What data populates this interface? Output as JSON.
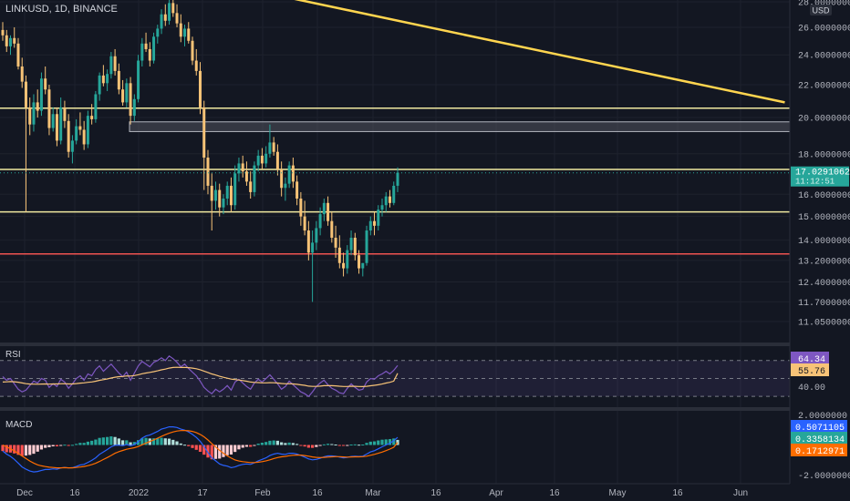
{
  "header": {
    "symbol_label": "LINKUSD, 1D, BINANCE",
    "currency": "USD"
  },
  "price_axis": {
    "labels": [
      "28.0000000",
      "26.0000000",
      "24.0000000",
      "22.0000000",
      "20.0000000",
      "18.0000000",
      "16.0000000",
      "15.0000000",
      "14.0000000",
      "13.2000000",
      "12.4000000",
      "11.7000000",
      "11.0500000"
    ],
    "values": [
      28.0,
      26.0,
      24.0,
      22.0,
      20.0,
      18.0,
      16.0,
      15.0,
      14.0,
      13.2,
      12.4,
      11.7,
      11.05
    ],
    "current_price": "17.0291062",
    "current_price_value": 17.0291,
    "countdown": "11:12:51"
  },
  "time_axis": {
    "labels": [
      "Dec",
      "16",
      "2022",
      "17",
      "Feb",
      "16",
      "Mar",
      "16",
      "Apr",
      "16",
      "May",
      "16",
      "Jun"
    ]
  },
  "drawings": {
    "horizontal_levels": [
      {
        "value": 20.55,
        "color": "#f0e9a0"
      },
      {
        "value": 17.2,
        "color": "#f0e9a0"
      },
      {
        "value": 15.2,
        "color": "#f0e9a0"
      },
      {
        "value": 13.45,
        "color": "#ef5350"
      }
    ],
    "zone": {
      "from": 19.2,
      "to": 19.75,
      "color": "#5d606b"
    },
    "trendline": {
      "color": "#ffd54f",
      "from": {
        "bar": 70,
        "price": 28.6
      },
      "to": {
        "bar": 202,
        "price": 20.9
      }
    }
  },
  "chart_data": [
    {
      "type": "candlestick",
      "title": "LINKUSD, 1D, BINANCE",
      "ylim": [
        11.05,
        28.0
      ],
      "scale": "log",
      "up_color": "#26a69a",
      "down_color": "#f7c377",
      "ohlc": [
        [
          25.8,
          26.4,
          25.0,
          25.4
        ],
        [
          25.4,
          25.8,
          24.2,
          24.6
        ],
        [
          24.6,
          25.4,
          24.0,
          25.2
        ],
        [
          25.2,
          26.0,
          24.5,
          24.8
        ],
        [
          24.8,
          25.2,
          23.0,
          23.2
        ],
        [
          23.2,
          23.8,
          21.8,
          22.2
        ],
        [
          22.2,
          22.6,
          15.2,
          20.6
        ],
        [
          20.6,
          21.2,
          19.0,
          19.6
        ],
        [
          19.6,
          21.4,
          19.2,
          20.9
        ],
        [
          20.9,
          21.7,
          20.0,
          20.4
        ],
        [
          20.4,
          22.8,
          20.1,
          22.4
        ],
        [
          22.4,
          23.2,
          21.4,
          21.7
        ],
        [
          21.7,
          22.0,
          19.0,
          19.4
        ],
        [
          19.4,
          20.6,
          19.2,
          20.2
        ],
        [
          20.2,
          20.6,
          18.4,
          18.7
        ],
        [
          18.7,
          21.2,
          18.5,
          20.6
        ],
        [
          20.6,
          21.0,
          19.4,
          19.8
        ],
        [
          19.8,
          20.2,
          17.8,
          18.1
        ],
        [
          18.1,
          19.0,
          17.5,
          18.7
        ],
        [
          18.7,
          19.9,
          18.5,
          19.5
        ],
        [
          19.5,
          20.3,
          19.0,
          19.3
        ],
        [
          19.3,
          19.8,
          18.2,
          18.5
        ],
        [
          18.5,
          20.4,
          18.3,
          20.1
        ],
        [
          20.1,
          20.8,
          19.6,
          19.9
        ],
        [
          19.9,
          21.6,
          19.7,
          21.4
        ],
        [
          21.4,
          22.8,
          21.0,
          22.6
        ],
        [
          22.6,
          23.3,
          21.9,
          22.1
        ],
        [
          22.1,
          23.0,
          21.6,
          22.7
        ],
        [
          22.7,
          24.2,
          22.4,
          23.9
        ],
        [
          23.9,
          24.4,
          22.6,
          22.9
        ],
        [
          22.9,
          23.4,
          21.4,
          21.7
        ],
        [
          21.7,
          22.3,
          20.7,
          20.9
        ],
        [
          20.9,
          22.4,
          20.6,
          22.1
        ],
        [
          22.1,
          22.5,
          19.6,
          20.1
        ],
        [
          20.1,
          21.4,
          19.8,
          21.1
        ],
        [
          21.1,
          24.0,
          20.9,
          23.6
        ],
        [
          23.6,
          25.2,
          23.2,
          24.8
        ],
        [
          24.8,
          25.6,
          24.2,
          24.4
        ],
        [
          24.4,
          24.9,
          23.2,
          23.6
        ],
        [
          23.6,
          25.6,
          23.4,
          25.3
        ],
        [
          25.3,
          26.2,
          24.8,
          25.9
        ],
        [
          25.9,
          27.4,
          25.5,
          27.0
        ],
        [
          27.0,
          27.8,
          26.1,
          26.5
        ],
        [
          26.5,
          28.3,
          26.2,
          27.9
        ],
        [
          27.9,
          28.5,
          26.8,
          27.1
        ],
        [
          27.1,
          27.8,
          26.0,
          26.3
        ],
        [
          26.3,
          27.0,
          24.9,
          25.3
        ],
        [
          25.3,
          26.2,
          24.6,
          25.9
        ],
        [
          25.9,
          26.4,
          24.8,
          25.0
        ],
        [
          25.0,
          25.3,
          23.3,
          23.6
        ],
        [
          23.6,
          24.4,
          22.6,
          22.9
        ],
        [
          22.9,
          23.5,
          20.2,
          20.6
        ],
        [
          20.6,
          21.0,
          16.2,
          17.8
        ],
        [
          17.8,
          18.2,
          16.0,
          16.4
        ],
        [
          16.4,
          17.0,
          14.4,
          15.7
        ],
        [
          15.7,
          16.6,
          15.3,
          16.2
        ],
        [
          16.2,
          16.5,
          15.0,
          15.4
        ],
        [
          15.4,
          16.0,
          15.1,
          15.8
        ],
        [
          15.8,
          16.6,
          15.5,
          16.4
        ],
        [
          16.4,
          16.8,
          15.2,
          15.5
        ],
        [
          15.5,
          17.4,
          15.3,
          17.0
        ],
        [
          17.0,
          17.8,
          16.6,
          17.5
        ],
        [
          17.5,
          17.9,
          16.8,
          17.1
        ],
        [
          17.1,
          17.6,
          16.4,
          16.6
        ],
        [
          16.6,
          17.1,
          15.8,
          16.1
        ],
        [
          16.1,
          17.6,
          15.9,
          17.4
        ],
        [
          17.4,
          18.2,
          17.1,
          17.9
        ],
        [
          17.9,
          18.3,
          17.2,
          17.5
        ],
        [
          17.5,
          18.4,
          17.3,
          18.0
        ],
        [
          18.0,
          19.6,
          17.8,
          18.6
        ],
        [
          18.6,
          18.9,
          17.9,
          18.1
        ],
        [
          18.1,
          18.5,
          16.9,
          17.2
        ],
        [
          17.2,
          17.6,
          15.9,
          16.3
        ],
        [
          16.3,
          16.8,
          15.7,
          16.5
        ],
        [
          16.5,
          17.6,
          16.3,
          17.4
        ],
        [
          17.4,
          17.8,
          16.3,
          16.6
        ],
        [
          16.6,
          16.9,
          15.5,
          15.8
        ],
        [
          15.8,
          16.1,
          14.6,
          15.0
        ],
        [
          15.0,
          15.7,
          14.2,
          14.4
        ],
        [
          14.4,
          14.8,
          13.2,
          13.5
        ],
        [
          13.5,
          14.4,
          11.7,
          13.9
        ],
        [
          13.9,
          14.8,
          13.6,
          14.5
        ],
        [
          14.5,
          15.4,
          14.2,
          15.1
        ],
        [
          15.1,
          15.8,
          14.8,
          15.6
        ],
        [
          15.6,
          15.9,
          14.6,
          14.8
        ],
        [
          14.8,
          15.2,
          13.9,
          14.1
        ],
        [
          14.1,
          14.6,
          13.3,
          13.7
        ],
        [
          13.7,
          14.2,
          12.9,
          13.1
        ],
        [
          13.1,
          13.5,
          12.6,
          12.9
        ],
        [
          12.9,
          13.8,
          12.7,
          13.6
        ],
        [
          13.6,
          14.4,
          13.4,
          14.1
        ],
        [
          14.1,
          14.3,
          13.2,
          13.4
        ],
        [
          13.4,
          13.6,
          12.7,
          12.9
        ],
        [
          12.9,
          13.1,
          12.6,
          13.1
        ],
        [
          13.1,
          14.6,
          13.0,
          14.4
        ],
        [
          14.4,
          15.0,
          14.2,
          14.8
        ],
        [
          14.8,
          15.2,
          14.2,
          14.6
        ],
        [
          14.6,
          15.5,
          14.4,
          15.3
        ],
        [
          15.3,
          15.8,
          15.0,
          15.5
        ],
        [
          15.5,
          16.1,
          15.2,
          15.9
        ],
        [
          15.9,
          16.2,
          15.4,
          15.6
        ],
        [
          15.6,
          16.6,
          15.5,
          16.4
        ],
        [
          16.4,
          17.3,
          16.1,
          17.03
        ]
      ]
    },
    {
      "type": "line",
      "title": "RSI",
      "ylim": [
        20,
        85
      ],
      "guide_levels": [
        70,
        50,
        30
      ],
      "series": [
        {
          "color": "#7e57c2",
          "values": [
            52,
            48,
            50,
            44,
            38,
            35,
            37,
            42,
            47,
            45,
            50,
            48,
            40,
            44,
            41,
            49,
            46,
            39,
            44,
            50,
            53,
            48,
            55,
            53,
            60,
            64,
            58,
            62,
            66,
            61,
            56,
            52,
            57,
            48,
            56,
            64,
            69,
            66,
            63,
            68,
            70,
            73,
            70,
            75,
            72,
            68,
            63,
            66,
            61,
            57,
            53,
            47,
            40,
            36,
            33,
            38,
            35,
            38,
            42,
            37,
            46,
            49,
            45,
            41,
            38,
            45,
            49,
            46,
            50,
            54,
            49,
            44,
            38,
            41,
            47,
            43,
            39,
            35,
            33,
            30,
            35,
            41,
            45,
            48,
            43,
            39,
            37,
            34,
            33,
            39,
            44,
            40,
            37,
            38,
            46,
            50,
            49,
            53,
            55,
            58,
            55,
            59,
            64.34
          ]
        },
        {
          "color": "#f7c377",
          "values": [
            46,
            46.2,
            46.5,
            46.3,
            45.8,
            45,
            44.2,
            43.8,
            43.7,
            43.6,
            43.8,
            43.9,
            43.7,
            43.9,
            43.9,
            44.1,
            44.2,
            43.9,
            43.9,
            44.3,
            44.8,
            45.1,
            45.7,
            46.1,
            46.9,
            47.9,
            48.6,
            49.5,
            50.6,
            51.4,
            52,
            52.2,
            52.8,
            52.7,
            53.2,
            54.1,
            55.2,
            56.1,
            56.8,
            57.6,
            58.5,
            59.6,
            60.4,
            61.5,
            62.2,
            62.5,
            62.3,
            62.4,
            62,
            61.5,
            60.8,
            59.7,
            58.2,
            56.7,
            55,
            53.8,
            52.4,
            51.3,
            50.3,
            49.2,
            48.7,
            48.2,
            47.6,
            46.9,
            46,
            45.6,
            45.4,
            45.1,
            45.1,
            45.3,
            45.2,
            44.9,
            44.4,
            44.1,
            44.2,
            43.9,
            43.5,
            42.9,
            42.3,
            41.4,
            41.1,
            41.1,
            41.4,
            41.9,
            42,
            41.9,
            41.7,
            41.3,
            41,
            41,
            41.3,
            41.2,
            41,
            40.9,
            41.2,
            41.8,
            42.3,
            43,
            43.8,
            44.9,
            45.7,
            47,
            55.76
          ]
        }
      ]
    },
    {
      "type": "bar",
      "title": "MACD",
      "ylim": [
        -2.5,
        2.2
      ],
      "macd_color": "#2962ff",
      "signal_color": "#ff6d00",
      "macd": [
        -0.4,
        -0.6,
        -0.75,
        -0.95,
        -1.2,
        -1.45,
        -1.6,
        -1.72,
        -1.78,
        -1.75,
        -1.68,
        -1.62,
        -1.62,
        -1.58,
        -1.6,
        -1.52,
        -1.48,
        -1.52,
        -1.5,
        -1.42,
        -1.32,
        -1.28,
        -1.15,
        -1.02,
        -0.85,
        -0.62,
        -0.46,
        -0.3,
        -0.12,
        -0.02,
        -0.01,
        -0.05,
        0.03,
        -0.05,
        0.02,
        0.22,
        0.45,
        0.6,
        0.66,
        0.78,
        0.9,
        1.05,
        1.12,
        1.2,
        1.2,
        1.16,
        1.05,
        0.98,
        0.86,
        0.7,
        0.5,
        0.25,
        -0.1,
        -0.5,
        -0.85,
        -1.05,
        -1.25,
        -1.35,
        -1.4,
        -1.5,
        -1.45,
        -1.35,
        -1.28,
        -1.25,
        -1.28,
        -1.18,
        -1.05,
        -0.95,
        -0.85,
        -0.7,
        -0.6,
        -0.55,
        -0.6,
        -0.62,
        -0.55,
        -0.55,
        -0.6,
        -0.7,
        -0.8,
        -0.92,
        -0.98,
        -0.95,
        -0.88,
        -0.78,
        -0.72,
        -0.72,
        -0.74,
        -0.8,
        -0.85,
        -0.82,
        -0.76,
        -0.74,
        -0.76,
        -0.74,
        -0.6,
        -0.46,
        -0.38,
        -0.25,
        -0.12,
        0.0,
        0.12,
        0.28,
        0.5071
      ],
      "signal": [
        0,
        -0.12,
        -0.25,
        -0.39,
        -0.55,
        -0.73,
        -0.9,
        -1.06,
        -1.2,
        -1.31,
        -1.38,
        -1.43,
        -1.47,
        -1.49,
        -1.51,
        -1.51,
        -1.5,
        -1.51,
        -1.51,
        -1.49,
        -1.46,
        -1.42,
        -1.37,
        -1.3,
        -1.21,
        -1.09,
        -0.96,
        -0.83,
        -0.69,
        -0.55,
        -0.44,
        -0.36,
        -0.28,
        -0.23,
        -0.18,
        -0.1,
        0.01,
        0.13,
        0.23,
        0.34,
        0.45,
        0.57,
        0.68,
        0.78,
        0.86,
        0.92,
        0.95,
        0.96,
        0.94,
        0.9,
        0.82,
        0.7,
        0.54,
        0.33,
        0.1,
        -0.13,
        -0.35,
        -0.55,
        -0.72,
        -0.87,
        -0.99,
        -1.06,
        -1.1,
        -1.13,
        -1.16,
        -1.16,
        -1.14,
        -1.1,
        -1.05,
        -0.98,
        -0.9,
        -0.83,
        -0.78,
        -0.75,
        -0.71,
        -0.68,
        -0.67,
        -0.67,
        -0.7,
        -0.74,
        -0.79,
        -0.82,
        -0.83,
        -0.82,
        -0.8,
        -0.78,
        -0.77,
        -0.77,
        -0.79,
        -0.8,
        -0.79,
        -0.78,
        -0.78,
        -0.77,
        -0.74,
        -0.68,
        -0.62,
        -0.55,
        -0.47,
        -0.37,
        -0.27,
        -0.15,
        0.1713
      ],
      "histogram_last": 0.3358,
      "axis_labels": [
        "2.0000000",
        "-2.0000000"
      ],
      "axis_values": [
        2.0,
        -2.0
      ]
    }
  ],
  "indicators": {
    "rsi": {
      "label": "RSI",
      "value": "64.34",
      "ma_value": "55.76",
      "axis_label": "40.00",
      "axis_value": 40
    },
    "macd": {
      "label": "MACD",
      "macd_value": "0.5071105",
      "histogram_value": "0.3358134",
      "signal_value": "0.1712971"
    }
  }
}
